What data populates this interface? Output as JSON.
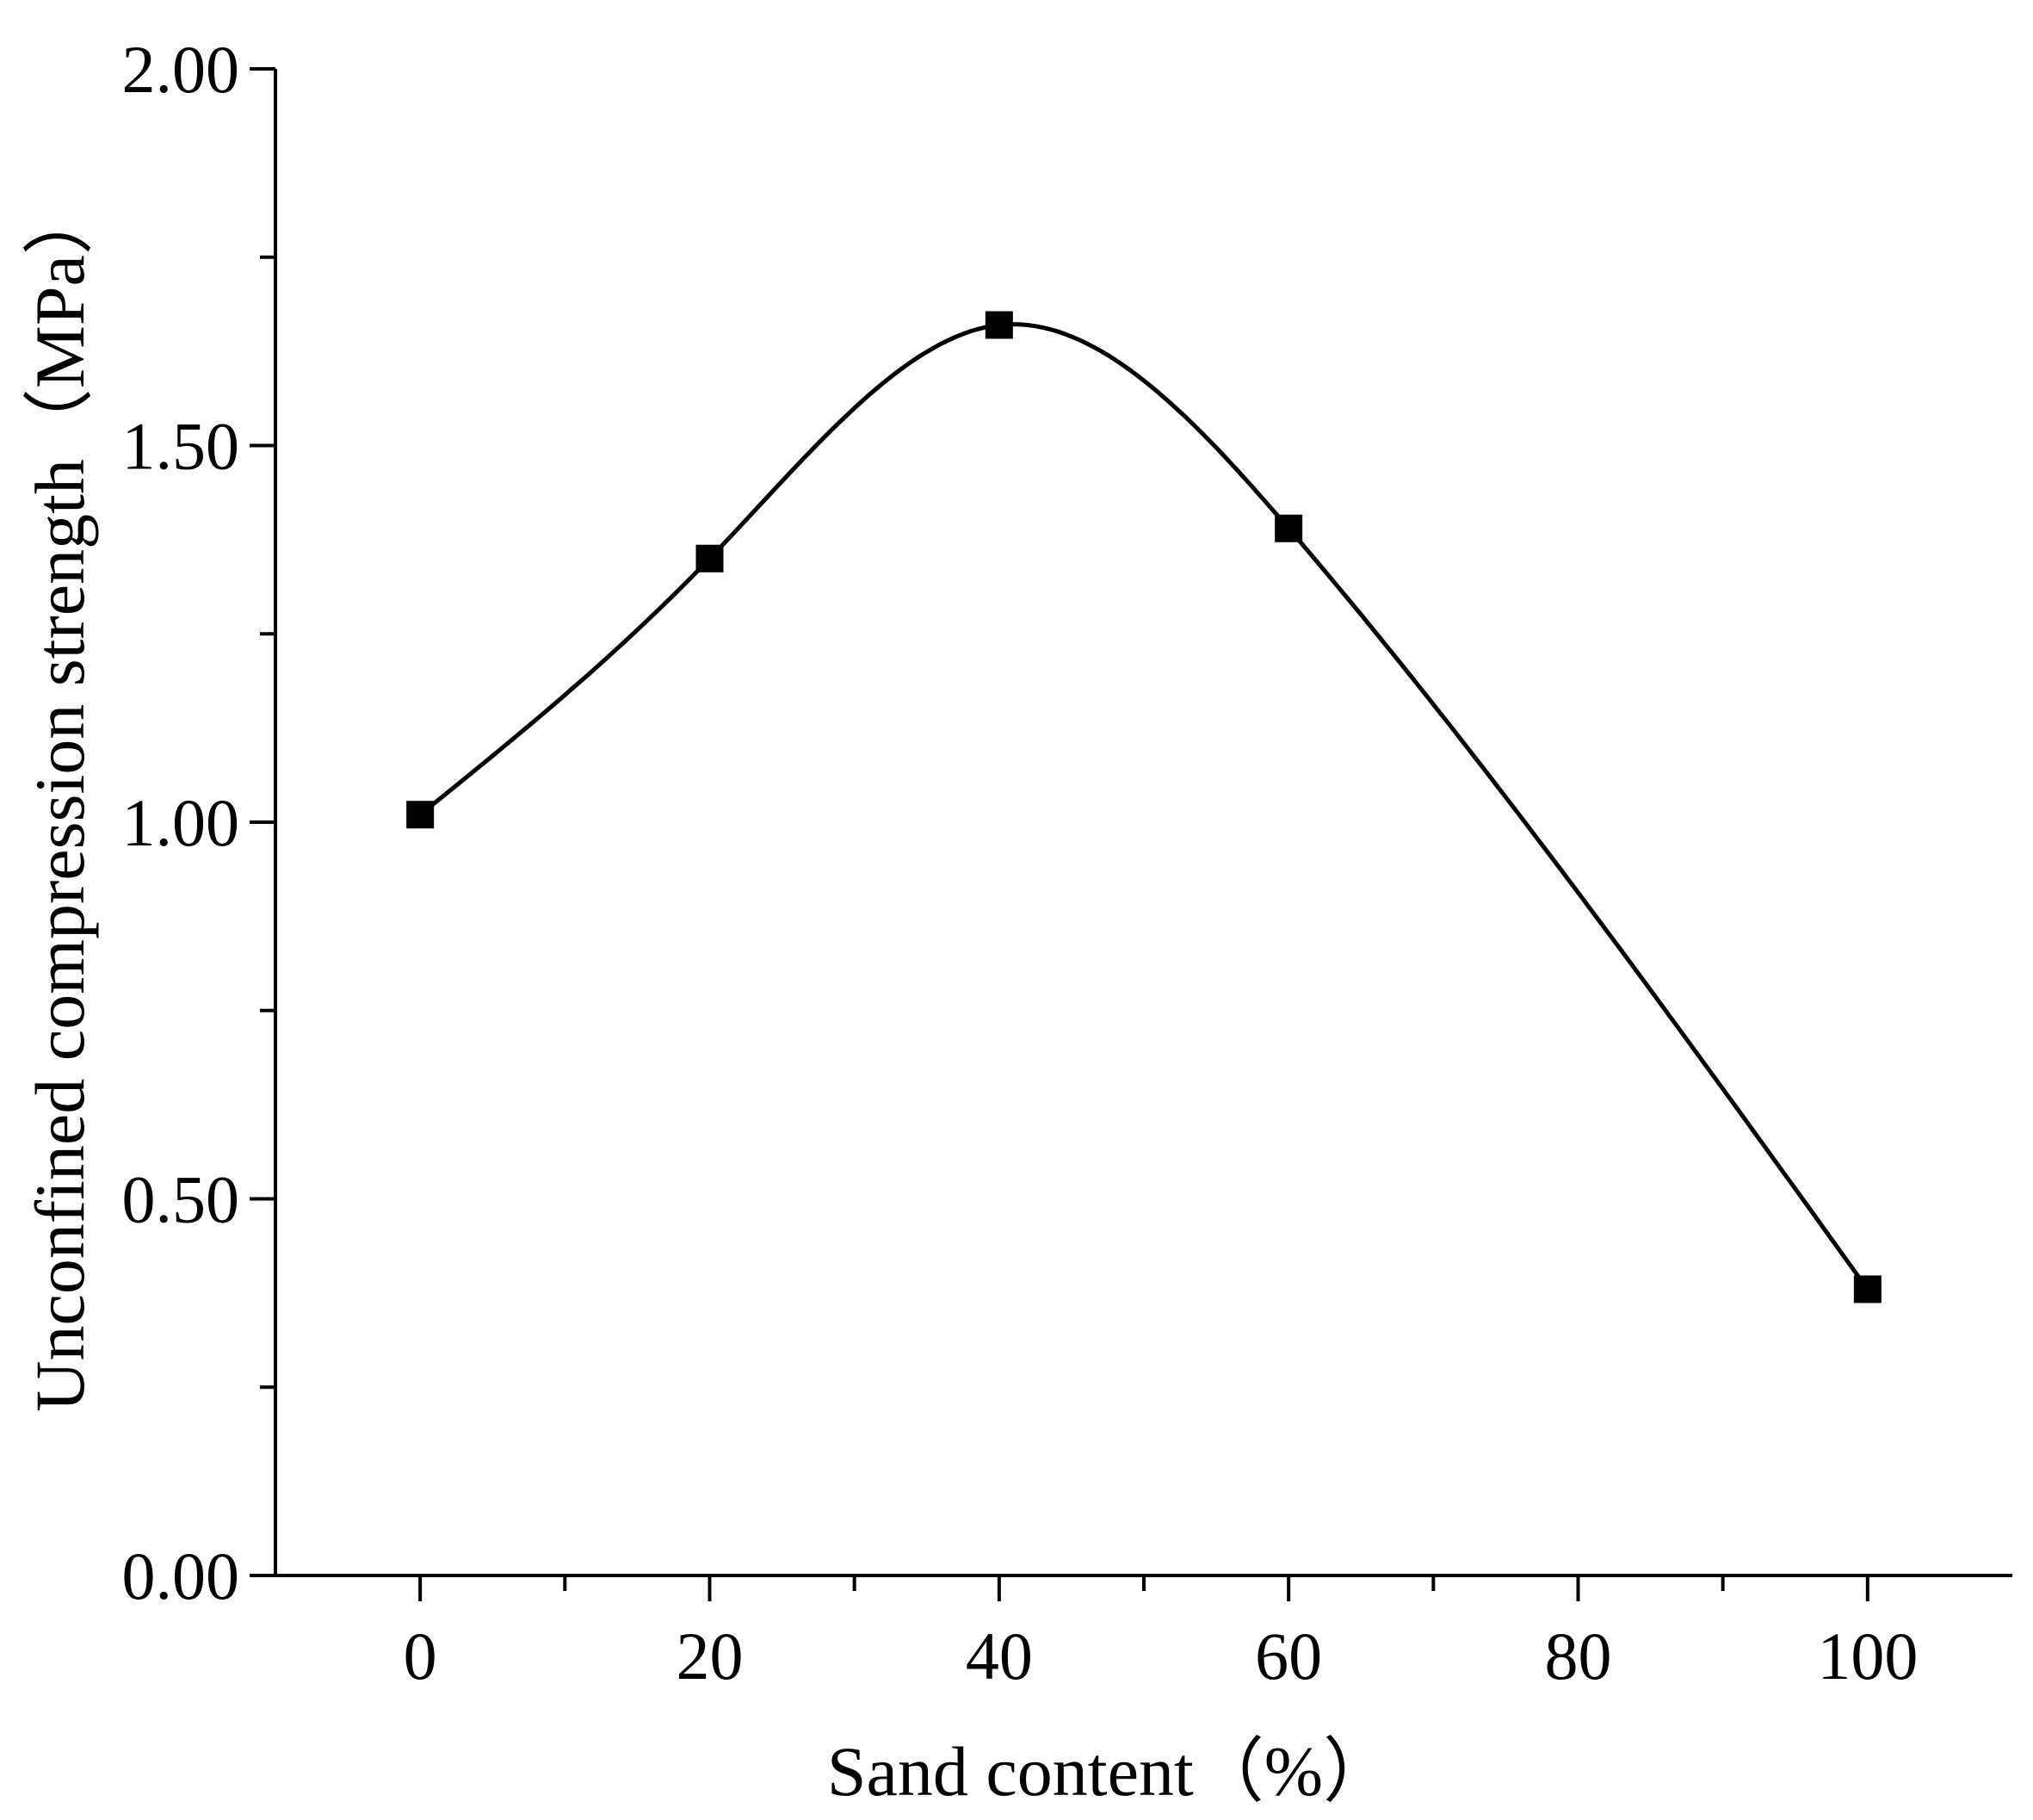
{
  "chart_data": {
    "type": "line",
    "title": "",
    "xlabel": "Sand content（%）",
    "ylabel": "Unconfined compression strength（MPa）",
    "xlim": [
      -10,
      110
    ],
    "ylim": [
      0,
      2.0
    ],
    "x_ticks": [
      0,
      20,
      40,
      60,
      80,
      100
    ],
    "x_tick_labels": [
      "0",
      "20",
      "40",
      "60",
      "80",
      "100"
    ],
    "x_minor_ticks": [
      10,
      30,
      50,
      70,
      90
    ],
    "y_ticks": [
      0,
      0.5,
      1.0,
      1.5,
      2.0
    ],
    "y_tick_labels": [
      "0.00",
      "0.50",
      "1.00",
      "1.50",
      "2.00"
    ],
    "y_minor_ticks": [
      0.25,
      0.75,
      1.25,
      1.75
    ],
    "grid": false,
    "legend": "none",
    "line_style": "smooth",
    "marker": "square",
    "color": "#000000",
    "series": [
      {
        "x": [
          0,
          20,
          40,
          60,
          100
        ],
        "values": [
          1.01,
          1.35,
          1.66,
          1.39,
          0.38
        ]
      }
    ]
  }
}
